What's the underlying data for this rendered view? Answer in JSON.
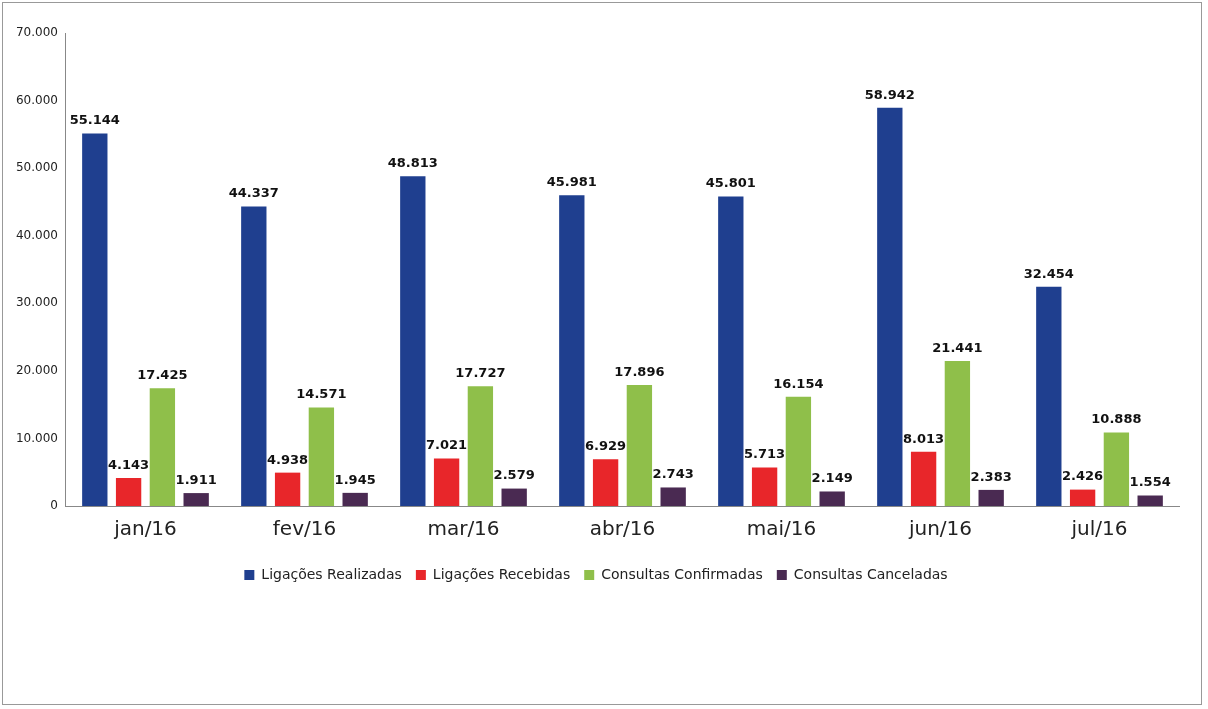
{
  "chart_data": {
    "type": "bar",
    "categories": [
      "jan/16",
      "fev/16",
      "mar/16",
      "abr/16",
      "mai/16",
      "jun/16",
      "jul/16"
    ],
    "series": [
      {
        "name": "Ligações Realizadas",
        "color": "#1f3f8f",
        "values": [
          55144,
          44337,
          48813,
          45981,
          45801,
          58942,
          32454
        ],
        "value_labels": [
          "55.144",
          "44.337",
          "48.813",
          "45.981",
          "45.801",
          "58.942",
          "32.454"
        ]
      },
      {
        "name": "Ligações Recebidas",
        "color": "#e8262a",
        "values": [
          4143,
          4938,
          7021,
          6929,
          5713,
          8013,
          2426
        ],
        "value_labels": [
          "4.143",
          "4.938",
          "7.021",
          "6.929",
          "5.713",
          "8.013",
          "2.426"
        ]
      },
      {
        "name": "Consultas Confirmadas",
        "color": "#8fbf4a",
        "values": [
          17425,
          14571,
          17727,
          17896,
          16154,
          21441,
          10888
        ],
        "value_labels": [
          "17.425",
          "14.571",
          "17.727",
          "17.896",
          "16.154",
          "21.441",
          "10.888"
        ]
      },
      {
        "name": "Consultas Canceladas",
        "color": "#4a2a52",
        "values": [
          1911,
          1945,
          2579,
          2743,
          2149,
          2383,
          1554
        ],
        "value_labels": [
          "1.911",
          "1.945",
          "2.579",
          "2.743",
          "2.149",
          "2.383",
          "1.554"
        ]
      }
    ],
    "ylim": [
      0,
      70000
    ],
    "yticks": [
      {
        "value": 0,
        "label": "0"
      },
      {
        "value": 10000,
        "label": "10.000"
      },
      {
        "value": 20000,
        "label": "20.000"
      },
      {
        "value": 30000,
        "label": "30.000"
      },
      {
        "value": 40000,
        "label": "40.000"
      },
      {
        "value": 50000,
        "label": "50.000"
      },
      {
        "value": 60000,
        "label": "60.000"
      },
      {
        "value": 70000,
        "label": "70.000"
      }
    ],
    "grid": false,
    "legend": "bottom"
  }
}
